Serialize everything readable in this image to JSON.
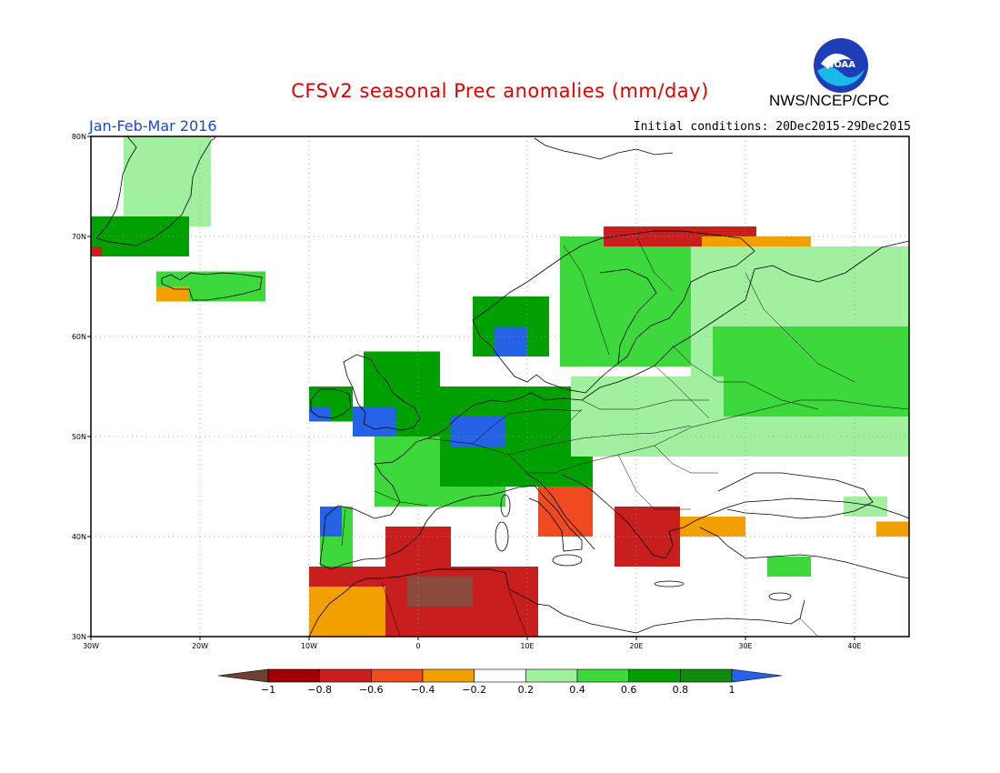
{
  "header": {
    "title": "CFSv2 seasonal Prec anomalies (mm/day)",
    "season": "Jan-Feb-Mar 2016",
    "initial_conditions": "Initial conditions: 20Dec2015-29Dec2015",
    "agency": "NWS/NCEP/CPC",
    "logo_text": "NOAA"
  },
  "map": {
    "lon_range": [
      -30,
      45
    ],
    "lat_range": [
      30,
      80
    ],
    "lat_ticks": [
      {
        "value": 80,
        "label": "80N"
      },
      {
        "value": 70,
        "label": "70N"
      },
      {
        "value": 60,
        "label": "60N"
      },
      {
        "value": 50,
        "label": "50N"
      },
      {
        "value": 40,
        "label": "40N"
      },
      {
        "value": 30,
        "label": "30N"
      }
    ],
    "lon_ticks": [
      {
        "value": -30,
        "label": "30W"
      },
      {
        "value": -20,
        "label": "20W"
      },
      {
        "value": -10,
        "label": "10W"
      },
      {
        "value": 0,
        "label": "0"
      },
      {
        "value": 10,
        "label": "10E"
      },
      {
        "value": 20,
        "label": "20E"
      },
      {
        "value": 30,
        "label": "30E"
      },
      {
        "value": 40,
        "label": "40E"
      }
    ],
    "grid": "dotted",
    "anomaly_regions": [
      {
        "name": "Greenland east coast",
        "lon": [
          -27,
          -19
        ],
        "lat": [
          71,
          80
        ],
        "color": "#a0f0a0"
      },
      {
        "name": "Greenland southeast",
        "lon": [
          -30,
          -21
        ],
        "lat": [
          68,
          72
        ],
        "color": "#00a000"
      },
      {
        "name": "Greenland tip",
        "lon": [
          -30,
          -29
        ],
        "lat": [
          68,
          69
        ],
        "color": "#c81e1e"
      },
      {
        "name": "Iceland",
        "lon": [
          -24,
          -14
        ],
        "lat": [
          63.5,
          66.5
        ],
        "color": "#3cd83c"
      },
      {
        "name": "Iceland southwest",
        "lon": [
          -24,
          -21
        ],
        "lat": [
          63.5,
          65
        ],
        "color": "#f2a000"
      },
      {
        "name": "Norway coast",
        "lon": [
          5,
          12
        ],
        "lat": [
          58,
          64
        ],
        "color": "#00a000"
      },
      {
        "name": "Norway southwest",
        "lon": [
          7,
          10
        ],
        "lat": [
          58,
          61
        ],
        "color": "#2662e6"
      },
      {
        "name": "Scandinavia",
        "lon": [
          13,
          27
        ],
        "lat": [
          57,
          70
        ],
        "color": "#3cd83c"
      },
      {
        "name": "Northern Norway",
        "lon": [
          17,
          31
        ],
        "lat": [
          69,
          71
        ],
        "color": "#c81e1e"
      },
      {
        "name": "Kola",
        "lon": [
          26,
          36
        ],
        "lat": [
          68,
          70
        ],
        "color": "#f2a000"
      },
      {
        "name": "Western Russia",
        "lon": [
          25,
          45
        ],
        "lat": [
          48,
          69
        ],
        "color": "#a0f0a0"
      },
      {
        "name": "Central Russia",
        "lon": [
          27,
          45
        ],
        "lat": [
          52,
          61
        ],
        "color": "#3cd83c"
      },
      {
        "name": "Ireland",
        "lon": [
          -10,
          -6
        ],
        "lat": [
          51.5,
          55
        ],
        "color": "#00a000"
      },
      {
        "name": "Ireland southwest",
        "lon": [
          -10,
          -8
        ],
        "lat": [
          51.5,
          53
        ],
        "color": "#2662e6"
      },
      {
        "name": "Great Britain",
        "lon": [
          -5,
          2
        ],
        "lat": [
          50,
          58.5
        ],
        "color": "#00a000"
      },
      {
        "name": "England south",
        "lon": [
          -6,
          -2
        ],
        "lat": [
          50,
          53
        ],
        "color": "#2662e6"
      },
      {
        "name": "France",
        "lon": [
          -4,
          8
        ],
        "lat": [
          43,
          50
        ],
        "color": "#3cd83c"
      },
      {
        "name": "Central Europe",
        "lon": [
          2,
          16
        ],
        "lat": [
          45,
          55
        ],
        "color": "#00a000"
      },
      {
        "name": "Benelux",
        "lon": [
          3,
          8
        ],
        "lat": [
          49,
          52
        ],
        "color": "#2662e6"
      },
      {
        "name": "Poland and Baltics",
        "lon": [
          14,
          28
        ],
        "lat": [
          48,
          56
        ],
        "color": "#a0f0a0"
      },
      {
        "name": "Portugal",
        "lon": [
          -9,
          -6
        ],
        "lat": [
          37,
          43
        ],
        "color": "#3cd83c"
      },
      {
        "name": "Galicia",
        "lon": [
          -9,
          -7
        ],
        "lat": [
          40,
          43
        ],
        "color": "#2662e6"
      },
      {
        "name": "Eastern Spain",
        "lon": [
          -3,
          3
        ],
        "lat": [
          36,
          41
        ],
        "color": "#c81e1e"
      },
      {
        "name": "Northwest Africa",
        "lon": [
          -10,
          11
        ],
        "lat": [
          30,
          37
        ],
        "color": "#c81e1e"
      },
      {
        "name": "Morocco",
        "lon": [
          -10,
          -3
        ],
        "lat": [
          30,
          35
        ],
        "color": "#f2a000"
      },
      {
        "name": "Atlas",
        "lon": [
          -1,
          5
        ],
        "lat": [
          33,
          36
        ],
        "color": "#8b4a3c"
      },
      {
        "name": "Italy",
        "lon": [
          11,
          16
        ],
        "lat": [
          40,
          45
        ],
        "color": "#f04a20"
      },
      {
        "name": "Balkans",
        "lon": [
          18,
          24
        ],
        "lat": [
          37,
          43
        ],
        "color": "#c81e1e"
      },
      {
        "name": "Western Turkey",
        "lon": [
          24,
          30
        ],
        "lat": [
          40,
          42
        ],
        "color": "#f2a000"
      },
      {
        "name": "Anatolia",
        "lon": [
          32,
          36
        ],
        "lat": [
          36,
          38
        ],
        "color": "#3cd83c"
      },
      {
        "name": "Caucasus",
        "lon": [
          39,
          43
        ],
        "lat": [
          42,
          44
        ],
        "color": "#a0f0a0"
      },
      {
        "name": "Eastern Turkey",
        "lon": [
          42,
          45
        ],
        "lat": [
          40,
          41.5
        ],
        "color": "#f2a000"
      }
    ]
  },
  "colorbar": {
    "title": "",
    "colors": [
      "#6e4032",
      "#a00000",
      "#c81e1e",
      "#f04a20",
      "#f2a000",
      "#ffffff",
      "#a0f0a0",
      "#3cd83c",
      "#00a000",
      "#128a12",
      "#2662e6"
    ],
    "labels": [
      "−1",
      "−0.8",
      "−0.6",
      "−0.4",
      "−0.2",
      "0.2",
      "0.4",
      "0.6",
      "0.8",
      "1"
    ]
  }
}
